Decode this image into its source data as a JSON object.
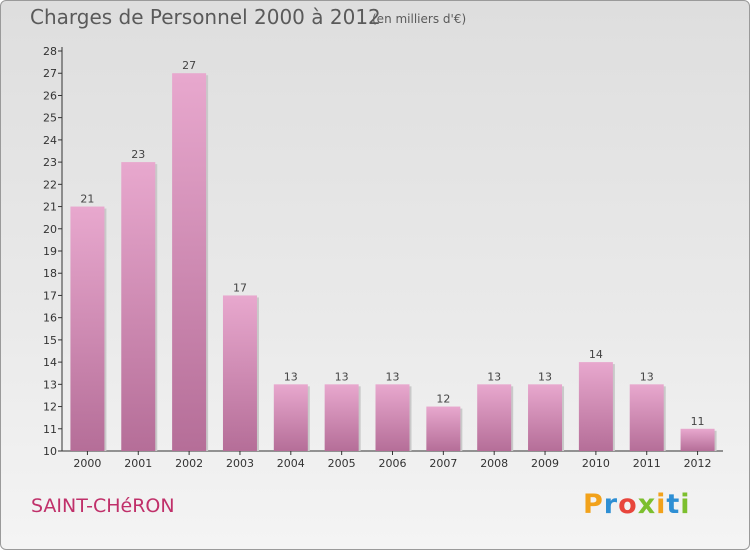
{
  "chart_data": {
    "type": "bar",
    "title": "Charges de Personnel 2000 à 2012",
    "subtitle": "(en milliers d'€)",
    "categories": [
      "2000",
      "2001",
      "2002",
      "2003",
      "2004",
      "2005",
      "2006",
      "2007",
      "2008",
      "2009",
      "2010",
      "2011",
      "2012"
    ],
    "values": [
      21,
      23,
      27,
      17,
      13,
      13,
      13,
      12,
      13,
      13,
      14,
      13,
      11
    ],
    "ylim": [
      10,
      28
    ],
    "yticks": [
      10,
      11,
      12,
      13,
      14,
      15,
      16,
      17,
      18,
      19,
      20,
      21,
      22,
      23,
      24,
      25,
      26,
      27,
      28
    ],
    "grid": false,
    "bar_color": "#d98ab6"
  },
  "footer": {
    "commune": "SAINT-CHéRON",
    "logo": {
      "letters": [
        "P",
        "r",
        "o",
        "x",
        "i",
        "t",
        "i"
      ],
      "colors": [
        "#f2a21b",
        "#2e8fd4",
        "#e8453c",
        "#7cbf2e",
        "#f2a21b",
        "#2e8fd4",
        "#7cbf2e"
      ]
    }
  }
}
